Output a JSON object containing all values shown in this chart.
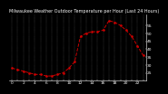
{
  "title": "Milwaukee Weather Outdoor Temperature per Hour (Last 24 Hours)",
  "x_values": [
    0,
    1,
    2,
    3,
    4,
    5,
    6,
    7,
    8,
    9,
    10,
    11,
    12,
    13,
    14,
    15,
    16,
    17,
    18,
    19,
    20,
    21,
    22,
    23
  ],
  "y_values": [
    28,
    27,
    26,
    25,
    24,
    24,
    23,
    23,
    24,
    25,
    28,
    32,
    48,
    50,
    51,
    51,
    52,
    58,
    57,
    55,
    52,
    48,
    42,
    36
  ],
  "line_color": "#cc0000",
  "linestyle": "--",
  "ylim": [
    20,
    62
  ],
  "xlim": [
    -0.5,
    23.5
  ],
  "yticks": [
    25,
    30,
    35,
    40,
    45,
    50,
    55
  ],
  "xticks": [
    0,
    1,
    2,
    3,
    4,
    5,
    6,
    7,
    8,
    9,
    10,
    11,
    12,
    13,
    14,
    15,
    16,
    17,
    18,
    19,
    20,
    21,
    22,
    23
  ],
  "grid_color": "#888888",
  "bg_color": "#000000",
  "text_color": "#ffffff",
  "tick_fontsize": 3.2,
  "title_fontsize": 3.5,
  "linewidth": 0.7,
  "markersize": 1.8
}
